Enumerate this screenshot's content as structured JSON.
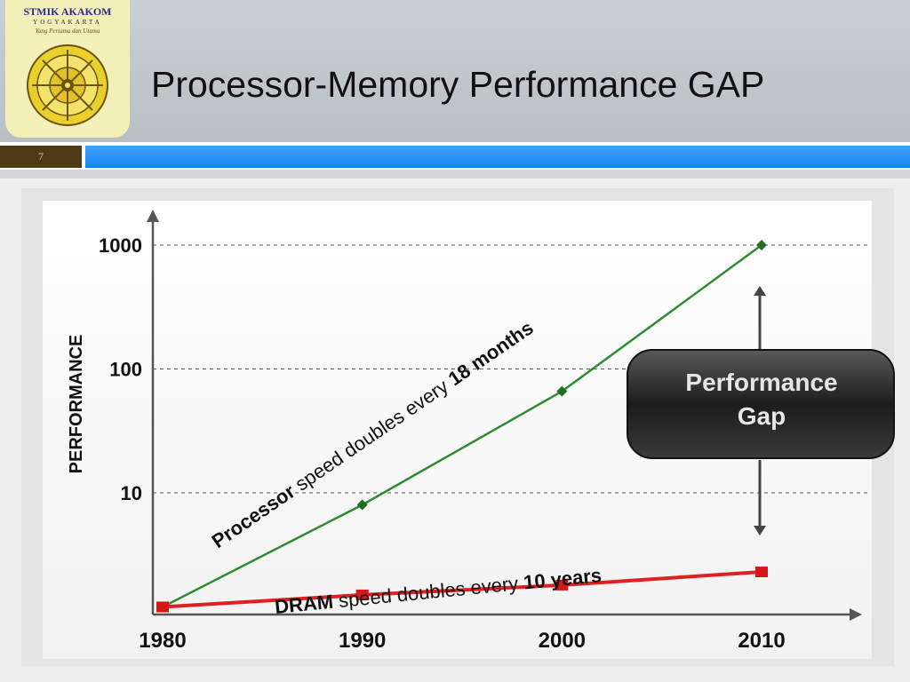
{
  "slide": {
    "title": "Processor-Memory Performance GAP",
    "number": "7"
  },
  "logo": {
    "name": "STMIK AKAKOM",
    "city": "YOGYAKARTA",
    "motto": "Yang Pertama dan Utama"
  },
  "colors": {
    "header_bg": "#c4cacd",
    "accent_blue": "#2196f3",
    "number_box": "#4e3b16",
    "processor_line": "#2e8b2e",
    "dram_line": "#e02020",
    "gap_box": "#2a2a2a"
  },
  "chart_data": {
    "type": "line",
    "ylabel": "PERFORMANCE",
    "yscale": "log",
    "ylim": [
      1,
      1000
    ],
    "yticks": [
      10,
      100,
      1000
    ],
    "ytick_labels": [
      "10",
      "100",
      "1000"
    ],
    "xlim": [
      1980,
      2010
    ],
    "xticks": [
      1980,
      1990,
      2000,
      2010
    ],
    "xtick_labels": [
      "1980",
      "1990",
      "2000",
      "2010"
    ],
    "grid": "horizontal-dashed",
    "series": [
      {
        "x": [
          1980,
          1990,
          2000,
          2010
        ],
        "values": [
          1.2,
          8,
          66,
          1000
        ],
        "color": "#2e8b2e",
        "marker": "diamond",
        "label_bold": "Processor",
        "label_normal": " speed doubles every ",
        "label_bold_end": "18 months"
      },
      {
        "x": [
          1980,
          1990,
          2000,
          2010
        ],
        "values": [
          1.2,
          1.5,
          1.8,
          2.3
        ],
        "color": "#e02020",
        "marker": "square",
        "label_bold": "DRAM",
        "label_normal": " speed doubles every ",
        "label_bold_end": "10 years"
      }
    ],
    "annotations": {
      "gap_line1": "Performance",
      "gap_line2": "Gap"
    }
  }
}
